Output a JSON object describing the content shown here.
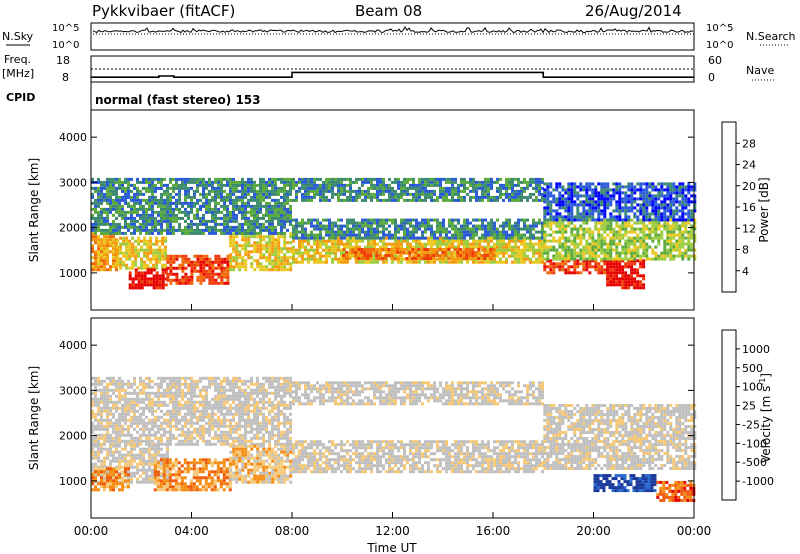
{
  "header": {
    "station": "Pykkvibaer (fitACF)",
    "beam": "Beam 08",
    "date": "26/Aug/2014"
  },
  "strip_panels": {
    "nsky": {
      "label": "N.Sky",
      "ticks": [
        "10^5",
        "10^0"
      ]
    },
    "nsearch": {
      "label": "N.Search",
      "ticks": [
        "10^5",
        "10^0"
      ]
    },
    "freq": {
      "label": "Freq.",
      "unit": "[MHz]",
      "ticks": [
        "18",
        "8"
      ],
      "values_mhz": [
        {
          "t": 0,
          "v": 10
        },
        {
          "t": 2.7,
          "v": 10.5
        },
        {
          "t": 3.3,
          "v": 10
        },
        {
          "t": 8.0,
          "v": 12
        },
        {
          "t": 18.0,
          "v": 10
        },
        {
          "t": 24,
          "v": 10
        }
      ]
    },
    "nave": {
      "label": "Nave",
      "ticks": [
        "60",
        "0"
      ]
    },
    "cpid": {
      "label": "CPID",
      "text": "normal (fast stereo) 153"
    }
  },
  "chart_data": [
    {
      "type": "heatmap",
      "name": "power",
      "ylabel": "Slant Range [km]",
      "ylim": [
        180,
        4600
      ],
      "yticks": [
        "1000",
        "2000",
        "3000",
        "4000"
      ],
      "xlim": [
        0,
        24
      ],
      "colorbar": {
        "label": "Power [dB]",
        "ticks": [
          "4",
          "8",
          "12",
          "16",
          "20",
          "24",
          "28"
        ],
        "colors": [
          "#0000ff",
          "#2a5ad8",
          "#3c8a70",
          "#5aaa3c",
          "#9ccc3c",
          "#e8c81e",
          "#f59a0e",
          "#f06a0a",
          "#f03a0a",
          "#e60000"
        ]
      },
      "bands": [
        {
          "t0": 0.0,
          "t1": 1.0,
          "r0": 1100,
          "r1": 1900,
          "level": 6
        },
        {
          "t0": 1.0,
          "t1": 3.0,
          "r0": 1100,
          "r1": 1800,
          "level": 5
        },
        {
          "t0": 1.5,
          "t1": 3.0,
          "r0": 700,
          "r1": 1100,
          "level": 9
        },
        {
          "t0": 3.0,
          "t1": 5.5,
          "r0": 800,
          "r1": 1400,
          "level": 8
        },
        {
          "t0": 5.5,
          "t1": 8.0,
          "r0": 1100,
          "r1": 1900,
          "level": 5
        },
        {
          "t0": 8.0,
          "t1": 18.0,
          "r0": 1250,
          "r1": 1800,
          "level": 5
        },
        {
          "t0": 10.0,
          "t1": 16.0,
          "r0": 1350,
          "r1": 1550,
          "level": 7
        },
        {
          "t0": 8.0,
          "t1": 18.0,
          "r0": 1800,
          "r1": 2200,
          "level": 2
        },
        {
          "t0": 8.0,
          "t1": 18.0,
          "r0": 2600,
          "r1": 3100,
          "level": 2
        },
        {
          "t0": 0.0,
          "t1": 8.0,
          "r0": 1900,
          "r1": 3100,
          "level": 2
        },
        {
          "t0": 18.0,
          "t1": 20.5,
          "r0": 1000,
          "r1": 1300,
          "level": 8
        },
        {
          "t0": 20.5,
          "t1": 22.0,
          "r0": 650,
          "r1": 1300,
          "level": 9
        },
        {
          "t0": 18.0,
          "t1": 24.0,
          "r0": 1300,
          "r1": 2200,
          "level": 4
        },
        {
          "t0": 18.0,
          "t1": 24.0,
          "r0": 2200,
          "r1": 3000,
          "level": 1
        }
      ]
    },
    {
      "type": "heatmap",
      "name": "velocity",
      "ylabel": "Slant Range [km]",
      "ylim": [
        180,
        4600
      ],
      "yticks": [
        "1000",
        "2000",
        "3000",
        "4000"
      ],
      "xlabel": "Time UT",
      "xlim": [
        0,
        24
      ],
      "xticks": [
        "00:00",
        "04:00",
        "08:00",
        "12:00",
        "16:00",
        "20:00",
        "00:00"
      ],
      "colorbar": {
        "label": "Velocity [m s",
        "label_sup": "-1",
        "label_end": "]",
        "ticks": [
          "-1000",
          "-500",
          "-100",
          "-25",
          "25",
          "100",
          "500",
          "1000"
        ],
        "colors": [
          "#e60000",
          "#f05a0a",
          "#f58c14",
          "#f5c878",
          "#c0c0c0",
          "#c0c0c0",
          "#64c840",
          "#2e8a50",
          "#2a6ad0",
          "#1a3a9c"
        ]
      },
      "bands": [
        {
          "t0": 0.0,
          "t1": 8.0,
          "r0": 1800,
          "r1": 3300,
          "level": 4
        },
        {
          "t0": 8.0,
          "t1": 18.0,
          "r0": 1200,
          "r1": 1900,
          "level": 4
        },
        {
          "t0": 8.0,
          "t1": 18.0,
          "r0": 2700,
          "r1": 3200,
          "level": 4
        },
        {
          "t0": 0.0,
          "t1": 3.0,
          "r0": 1000,
          "r1": 1800,
          "level": 4
        },
        {
          "t0": 2.5,
          "t1": 5.5,
          "r0": 800,
          "r1": 1500,
          "level": 2
        },
        {
          "t0": 0.0,
          "t1": 1.5,
          "r0": 800,
          "r1": 1300,
          "level": 2
        },
        {
          "t0": 5.5,
          "t1": 8.0,
          "r0": 1000,
          "r1": 1800,
          "level": 3
        },
        {
          "t0": 18.0,
          "t1": 24.0,
          "r0": 1300,
          "r1": 2700,
          "level": 4
        },
        {
          "t0": 20.0,
          "t1": 22.5,
          "r0": 800,
          "r1": 1150,
          "level": 9
        },
        {
          "t0": 22.5,
          "t1": 24.0,
          "r0": 600,
          "r1": 1000,
          "level": 1
        }
      ]
    }
  ]
}
